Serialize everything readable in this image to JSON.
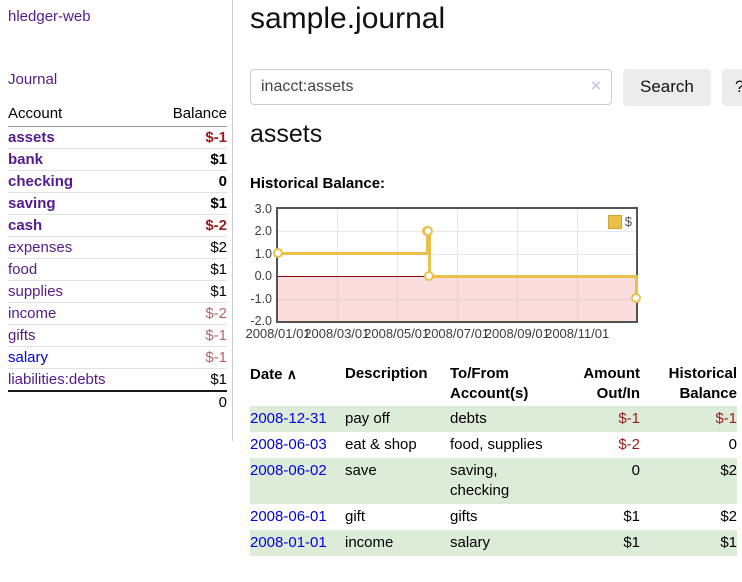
{
  "app": {
    "brand": "hledger-web"
  },
  "sidebar": {
    "nav_journal": "Journal",
    "table": {
      "headers": [
        "Account",
        "Balance"
      ],
      "rows": [
        {
          "account": "assets",
          "level": 1,
          "bold": true,
          "balance": "$-1",
          "balance_style": "neg"
        },
        {
          "account": "bank",
          "level": 2,
          "bold": true,
          "balance": "$1",
          "balance_style": "pos"
        },
        {
          "account": "checking",
          "level": 3,
          "bold": true,
          "balance": "0",
          "balance_style": "pos"
        },
        {
          "account": "saving",
          "level": 3,
          "bold": true,
          "balance": "$1",
          "balance_style": "pos"
        },
        {
          "account": "cash",
          "level": 2,
          "bold": true,
          "balance": "$-2",
          "balance_style": "neg"
        },
        {
          "account": "expenses",
          "level": 1,
          "bold": false,
          "balance": "$2",
          "balance_style": "pos"
        },
        {
          "account": "food",
          "level": 2,
          "bold": false,
          "balance": "$1",
          "balance_style": "pos"
        },
        {
          "account": "supplies",
          "level": 2,
          "bold": false,
          "balance": "$1",
          "balance_style": "pos"
        },
        {
          "account": "income",
          "level": 1,
          "bold": false,
          "balance": "$-2",
          "balance_style": "neg-light"
        },
        {
          "account": "gifts",
          "level": 2,
          "bold": false,
          "balance": "$-1",
          "balance_style": "neg-light"
        },
        {
          "account": "salary",
          "level": 2,
          "bold": false,
          "link_style": "unvisited",
          "balance": "$-1",
          "balance_style": "neg-light"
        },
        {
          "account": "liabilities:debts",
          "level": 1,
          "bold": false,
          "balance": "$1",
          "balance_style": "pos"
        }
      ],
      "total": "0"
    }
  },
  "header": {
    "title": "sample.journal"
  },
  "search": {
    "value": "inacct:assets",
    "clear_icon": "×",
    "button_label": "Search",
    "help_label": "?"
  },
  "account_page": {
    "heading": "assets",
    "chart_label": "Historical Balance:"
  },
  "chart_data": {
    "type": "line",
    "title": "Historical Balance",
    "step": true,
    "series": [
      {
        "name": "$",
        "color": "#e9c04a",
        "points": [
          [
            "2008-01-01",
            1
          ],
          [
            "2008-06-01",
            2
          ],
          [
            "2008-06-02",
            2
          ],
          [
            "2008-06-03",
            0
          ],
          [
            "2008-12-31",
            -1
          ]
        ]
      }
    ],
    "ylim": [
      -2,
      3
    ],
    "yticks": [
      3.0,
      2.0,
      1.0,
      0.0,
      -1.0,
      -2.0
    ],
    "x_start": "2008-01-01",
    "x_range_days": 365,
    "xticks": [
      {
        "label": "2008/01/01",
        "day": 0
      },
      {
        "label": "2008/03/01",
        "day": 60
      },
      {
        "label": "2008/05/01",
        "day": 121
      },
      {
        "label": "2008/07/01",
        "day": 182
      },
      {
        "label": "2008/09/01",
        "day": 244
      },
      {
        "label": "2008/11/01",
        "day": 305
      }
    ],
    "grid": true,
    "negative_region_fill": "rgba(244,158,158,0.35)",
    "zero_line_color": "#8b0000",
    "legend": {
      "label": "$",
      "position": "top-right"
    }
  },
  "register": {
    "headers": [
      "Date",
      "Description",
      "To/From Account(s)",
      "Amount Out/In",
      "Historical Balance"
    ],
    "sort_icon": "∧",
    "rows": [
      {
        "date": "2008-12-31",
        "description": "pay off",
        "accounts": "debts",
        "amount": "$-1",
        "amount_style": "neg",
        "balance": "$-1",
        "balance_style": "neg",
        "shade": true
      },
      {
        "date": "2008-06-03",
        "description": "eat & shop",
        "accounts": "food, supplies",
        "amount": "$-2",
        "amount_style": "neg",
        "balance": "0",
        "balance_style": "pos",
        "shade": false
      },
      {
        "date": "2008-06-02",
        "description": "save",
        "accounts": "saving,\nchecking",
        "amount": "0",
        "amount_style": "pos",
        "balance": "$2",
        "balance_style": "pos",
        "shade": true
      },
      {
        "date": "2008-06-01",
        "description": "gift",
        "accounts": "gifts",
        "amount": "$1",
        "amount_style": "pos",
        "balance": "$2",
        "balance_style": "pos",
        "shade": false
      },
      {
        "date": "2008-01-01",
        "description": "income",
        "accounts": "salary",
        "amount": "$1",
        "amount_style": "pos",
        "balance": "$1",
        "balance_style": "pos",
        "shade": true
      }
    ]
  }
}
